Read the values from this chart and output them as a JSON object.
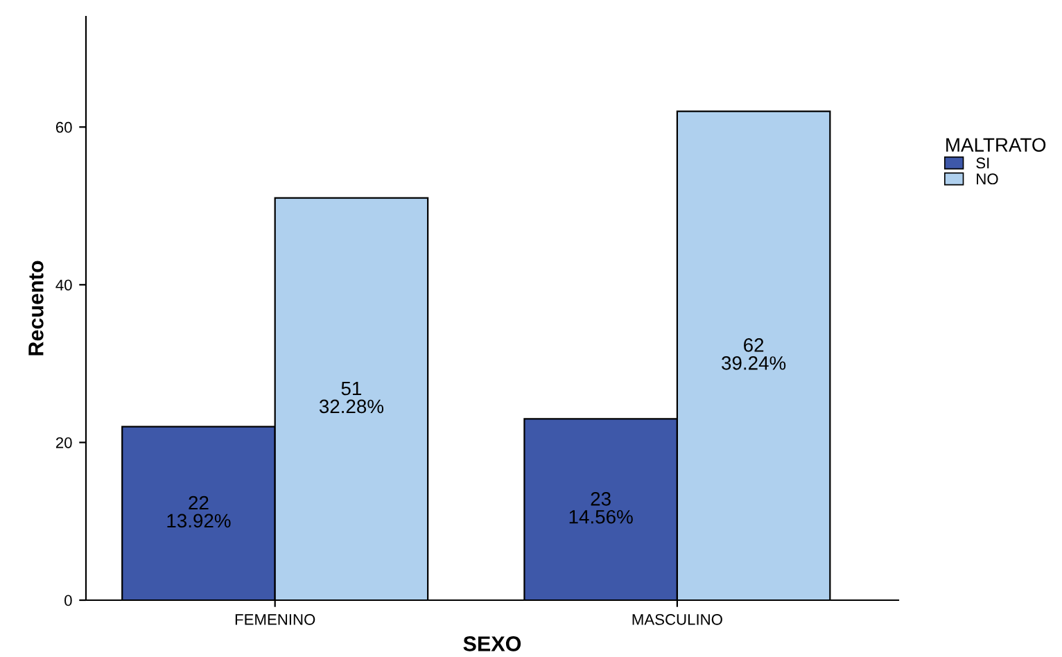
{
  "chart_data": {
    "type": "bar",
    "xlabel": "SEXO",
    "ylabel": "Recuento",
    "legend_title": "MALTRATO",
    "categories": [
      "FEMENINO",
      "MASCULINO"
    ],
    "series": [
      {
        "name": "SI",
        "color": "#3e58a9",
        "values": [
          22,
          23
        ],
        "value_labels": [
          "22\n13.92%",
          "23\n14.56%"
        ]
      },
      {
        "name": "NO",
        "color": "#afd0ee",
        "values": [
          51,
          62
        ],
        "value_labels": [
          "51\n32.28%",
          "62\n39.24%"
        ]
      }
    ],
    "ylim": [
      0,
      74
    ],
    "yticks": [
      0,
      20,
      40,
      60
    ],
    "grid": false,
    "legend": "right"
  }
}
